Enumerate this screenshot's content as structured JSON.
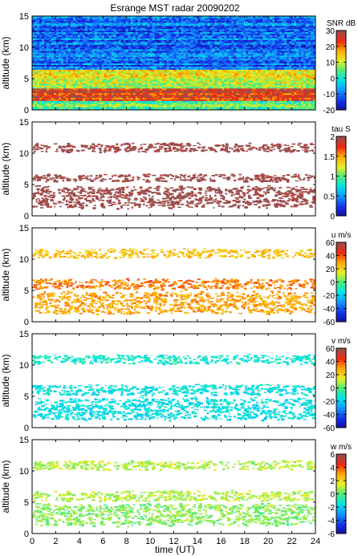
{
  "figure": {
    "title": "Esrange MST radar 20090202",
    "xlabel": "time (UT)",
    "xticks": [
      "0",
      "2",
      "4",
      "6",
      "8",
      "10",
      "12",
      "14",
      "16",
      "18",
      "20",
      "22",
      "24"
    ]
  },
  "chart_data": [
    {
      "type": "heatmap",
      "panel": "snr",
      "title": "Esrange MST radar 20090202",
      "ylabel": "altitude (km)",
      "xlim": [
        0,
        24
      ],
      "ylim": [
        0,
        15
      ],
      "yticks": [
        "0",
        "5",
        "10",
        "15"
      ],
      "colorbar": {
        "label": "SNR dB",
        "min": -20,
        "max": 30,
        "ticks": [
          "30",
          "20",
          "10",
          "0",
          "-10",
          "-20"
        ]
      },
      "layers": [
        {
          "altitude_range": [
            0,
            1.5
          ],
          "value": 5
        },
        {
          "altitude_range": [
            1.5,
            3.5
          ],
          "value": 24
        },
        {
          "altitude_range": [
            3.5,
            6.5
          ],
          "value": 10
        },
        {
          "altitude_range": [
            6.5,
            15
          ],
          "value": -10
        }
      ]
    },
    {
      "type": "heatmap",
      "panel": "tau",
      "ylabel": "altitude (km)",
      "xlim": [
        0,
        24
      ],
      "ylim": [
        0,
        15
      ],
      "yticks": [
        "0",
        "5",
        "10",
        "15"
      ],
      "colorbar": {
        "label": "tau S",
        "min": 0,
        "max": 2,
        "ticks": [
          "2",
          "1.5",
          "1",
          "0.5",
          "0"
        ]
      },
      "bands": [
        {
          "altitude_range": [
            10.2,
            11.8
          ],
          "value": 2
        },
        {
          "altitude_range": [
            5.5,
            6.8
          ],
          "value": 2
        },
        {
          "altitude_range": [
            1.2,
            5.0
          ],
          "value": 2
        }
      ]
    },
    {
      "type": "heatmap",
      "panel": "u",
      "ylabel": "altitude (km)",
      "xlim": [
        0,
        24
      ],
      "ylim": [
        0,
        15
      ],
      "yticks": [
        "0",
        "5",
        "10",
        "15"
      ],
      "colorbar": {
        "label": "u m/s",
        "min": -60,
        "max": 60,
        "ticks": [
          "60",
          "40",
          "20",
          "0",
          "-20",
          "-40",
          "-60"
        ]
      },
      "bands": [
        {
          "altitude_range": [
            10.2,
            11.8
          ],
          "value": 25
        },
        {
          "altitude_range": [
            5.2,
            7.0
          ],
          "value": 35
        },
        {
          "altitude_range": [
            1.2,
            5.0
          ],
          "value": 30
        }
      ]
    },
    {
      "type": "heatmap",
      "panel": "v",
      "ylabel": "altitude (km)",
      "xlim": [
        0,
        24
      ],
      "ylim": [
        0,
        15
      ],
      "yticks": [
        "0",
        "5",
        "10",
        "15"
      ],
      "colorbar": {
        "label": "v m/s",
        "min": -60,
        "max": 60,
        "ticks": [
          "60",
          "40",
          "20",
          "0",
          "-20",
          "-40",
          "-60"
        ]
      },
      "bands": [
        {
          "altitude_range": [
            10.2,
            11.8
          ],
          "value": -12
        },
        {
          "altitude_range": [
            5.2,
            7.0
          ],
          "value": -14
        },
        {
          "altitude_range": [
            1.2,
            5.0
          ],
          "value": -15
        }
      ]
    },
    {
      "type": "heatmap",
      "panel": "w",
      "ylabel": "altitude (km)",
      "xlim": [
        0,
        24
      ],
      "ylim": [
        0,
        15
      ],
      "yticks": [
        "0",
        "5",
        "10",
        "15"
      ],
      "colorbar": {
        "label": "w m/s",
        "min": -6,
        "max": 6,
        "ticks": [
          "6",
          "4",
          "2",
          "0",
          "-2",
          "-4",
          "-6"
        ]
      },
      "bands": [
        {
          "altitude_range": [
            10.2,
            11.8
          ],
          "value": 1
        },
        {
          "altitude_range": [
            5.2,
            7.0
          ],
          "value": 1
        },
        {
          "altitude_range": [
            1.2,
            5.0
          ],
          "value": 0.5
        }
      ]
    }
  ]
}
